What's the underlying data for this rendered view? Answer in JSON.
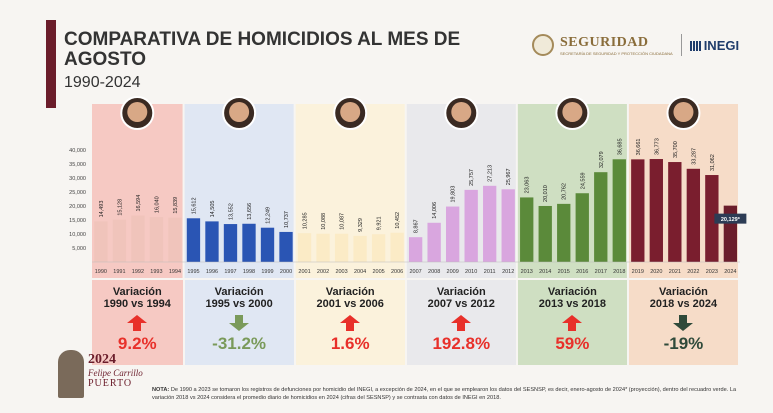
{
  "header": {
    "title": "COMPARATIVA DE HOMICIDIOS AL MES DE AGOSTO",
    "subtitle": "1990-2024",
    "logo_seguridad": "SEGURIDAD",
    "logo_seguridad_sub": "SECRETARÍA DE SEGURIDAD Y PROTECCIÓN CIUDADANA",
    "logo_inegi": "INEGI"
  },
  "colors": {
    "period_bg": [
      "#f6c9c3",
      "#e0e7f3",
      "#fbf2dc",
      "#e9e9ec",
      "#cfdfc2",
      "#f6dcc8"
    ],
    "bars": [
      "#f0c4bb",
      "#2a55b4",
      "#fbebc6",
      "#d9a6df",
      "#5b8a3a",
      "#7a1e2e"
    ],
    "projection_bar": "#6b1d2b",
    "arrow_up": "#e8302a",
    "arrow_down_light": "#7a9a5a",
    "arrow_down_dark": "#2f4a3a"
  },
  "chart_data": {
    "type": "bar",
    "title": "COMPARATIVA DE HOMICIDIOS AL MES DE AGOSTO",
    "ylim": [
      0,
      40000
    ],
    "yticks": [
      5000,
      10000,
      15000,
      20000,
      25000,
      30000,
      35000,
      40000
    ],
    "ytick_labels": [
      "5,000",
      "10,000",
      "15,000",
      "20,000",
      "25,000",
      "30,000",
      "35,000",
      "40,000"
    ],
    "categories": [
      "1990",
      "1991",
      "1992",
      "1993",
      "1994",
      "1995",
      "1996",
      "1997",
      "1998",
      "1999",
      "2000",
      "2001",
      "2002",
      "2003",
      "2004",
      "2005",
      "2006",
      "2007",
      "2008",
      "2009",
      "2010",
      "2011",
      "2012",
      "2013",
      "2014",
      "2015",
      "2016",
      "2017",
      "2018",
      "2019",
      "2020",
      "2021",
      "2022",
      "2023",
      "2024"
    ],
    "values": [
      14493,
      15128,
      16594,
      16040,
      15839,
      15612,
      14505,
      13552,
      13656,
      12249,
      10737,
      10285,
      10088,
      10087,
      9329,
      9921,
      10452,
      8867,
      14006,
      19803,
      25757,
      27213,
      25967,
      23063,
      20010,
      20762,
      24559,
      32079,
      36685,
      36661,
      36773,
      35700,
      33287,
      31062,
      20129
    ],
    "value_labels": [
      "14,493",
      "15,128",
      "16,594",
      "16,040",
      "15,839",
      "15,612",
      "14,505",
      "13,552",
      "13,656",
      "12,249",
      "10,737",
      "10,285",
      "10,088",
      "10,087",
      "9,329",
      "9,921",
      "10,452",
      "8,867",
      "14,006",
      "19,803",
      "25,757",
      "27,213",
      "25,967",
      "23,063",
      "20,010",
      "20,762",
      "24,559",
      "32,079",
      "36,685",
      "36,661",
      "36,773",
      "35,700",
      "33,287",
      "31,062",
      "20,129*"
    ],
    "periods": [
      {
        "years": [
          "1990",
          "1994"
        ],
        "label": "Variación",
        "range": "1990 vs 1994",
        "value": "9.2%",
        "direction": "up"
      },
      {
        "years": [
          "1995",
          "2000"
        ],
        "label": "Variación",
        "range": "1995 vs 2000",
        "value": "-31.2%",
        "direction": "down-light"
      },
      {
        "years": [
          "2001",
          "2006"
        ],
        "label": "Variación",
        "range": "2001 vs 2006",
        "value": "1.6%",
        "direction": "up"
      },
      {
        "years": [
          "2007",
          "2012"
        ],
        "label": "Variación",
        "range": "2007 vs 2012",
        "value": "192.8%",
        "direction": "up"
      },
      {
        "years": [
          "2013",
          "2018"
        ],
        "label": "Variación",
        "range": "2013 vs 2018",
        "value": "59%",
        "direction": "up"
      },
      {
        "years": [
          "2019",
          "2024"
        ],
        "label": "Variación",
        "range": "2018 vs 2024",
        "value": "-19%",
        "direction": "down-dark"
      }
    ]
  },
  "note": {
    "prefix": "NOTA:",
    "text": "De 1990 a 2023 se tomaron los registros de defunciones por homicidio del INEGI, a excepción de 2024, en el que se emplearon los datos del SESNSP, es decir, enero-agosto de 2024* (proyección), dentro del recuadro verde. La variación 2018 vs 2024 considera el promedio diario de homicidios en 2024 (cifras del SESNSP) y se contrasta con datos de INEGI en 2018."
  },
  "badge": {
    "year": "2024",
    "name": "Felipe Carrillo",
    "city": "PUERTO"
  }
}
